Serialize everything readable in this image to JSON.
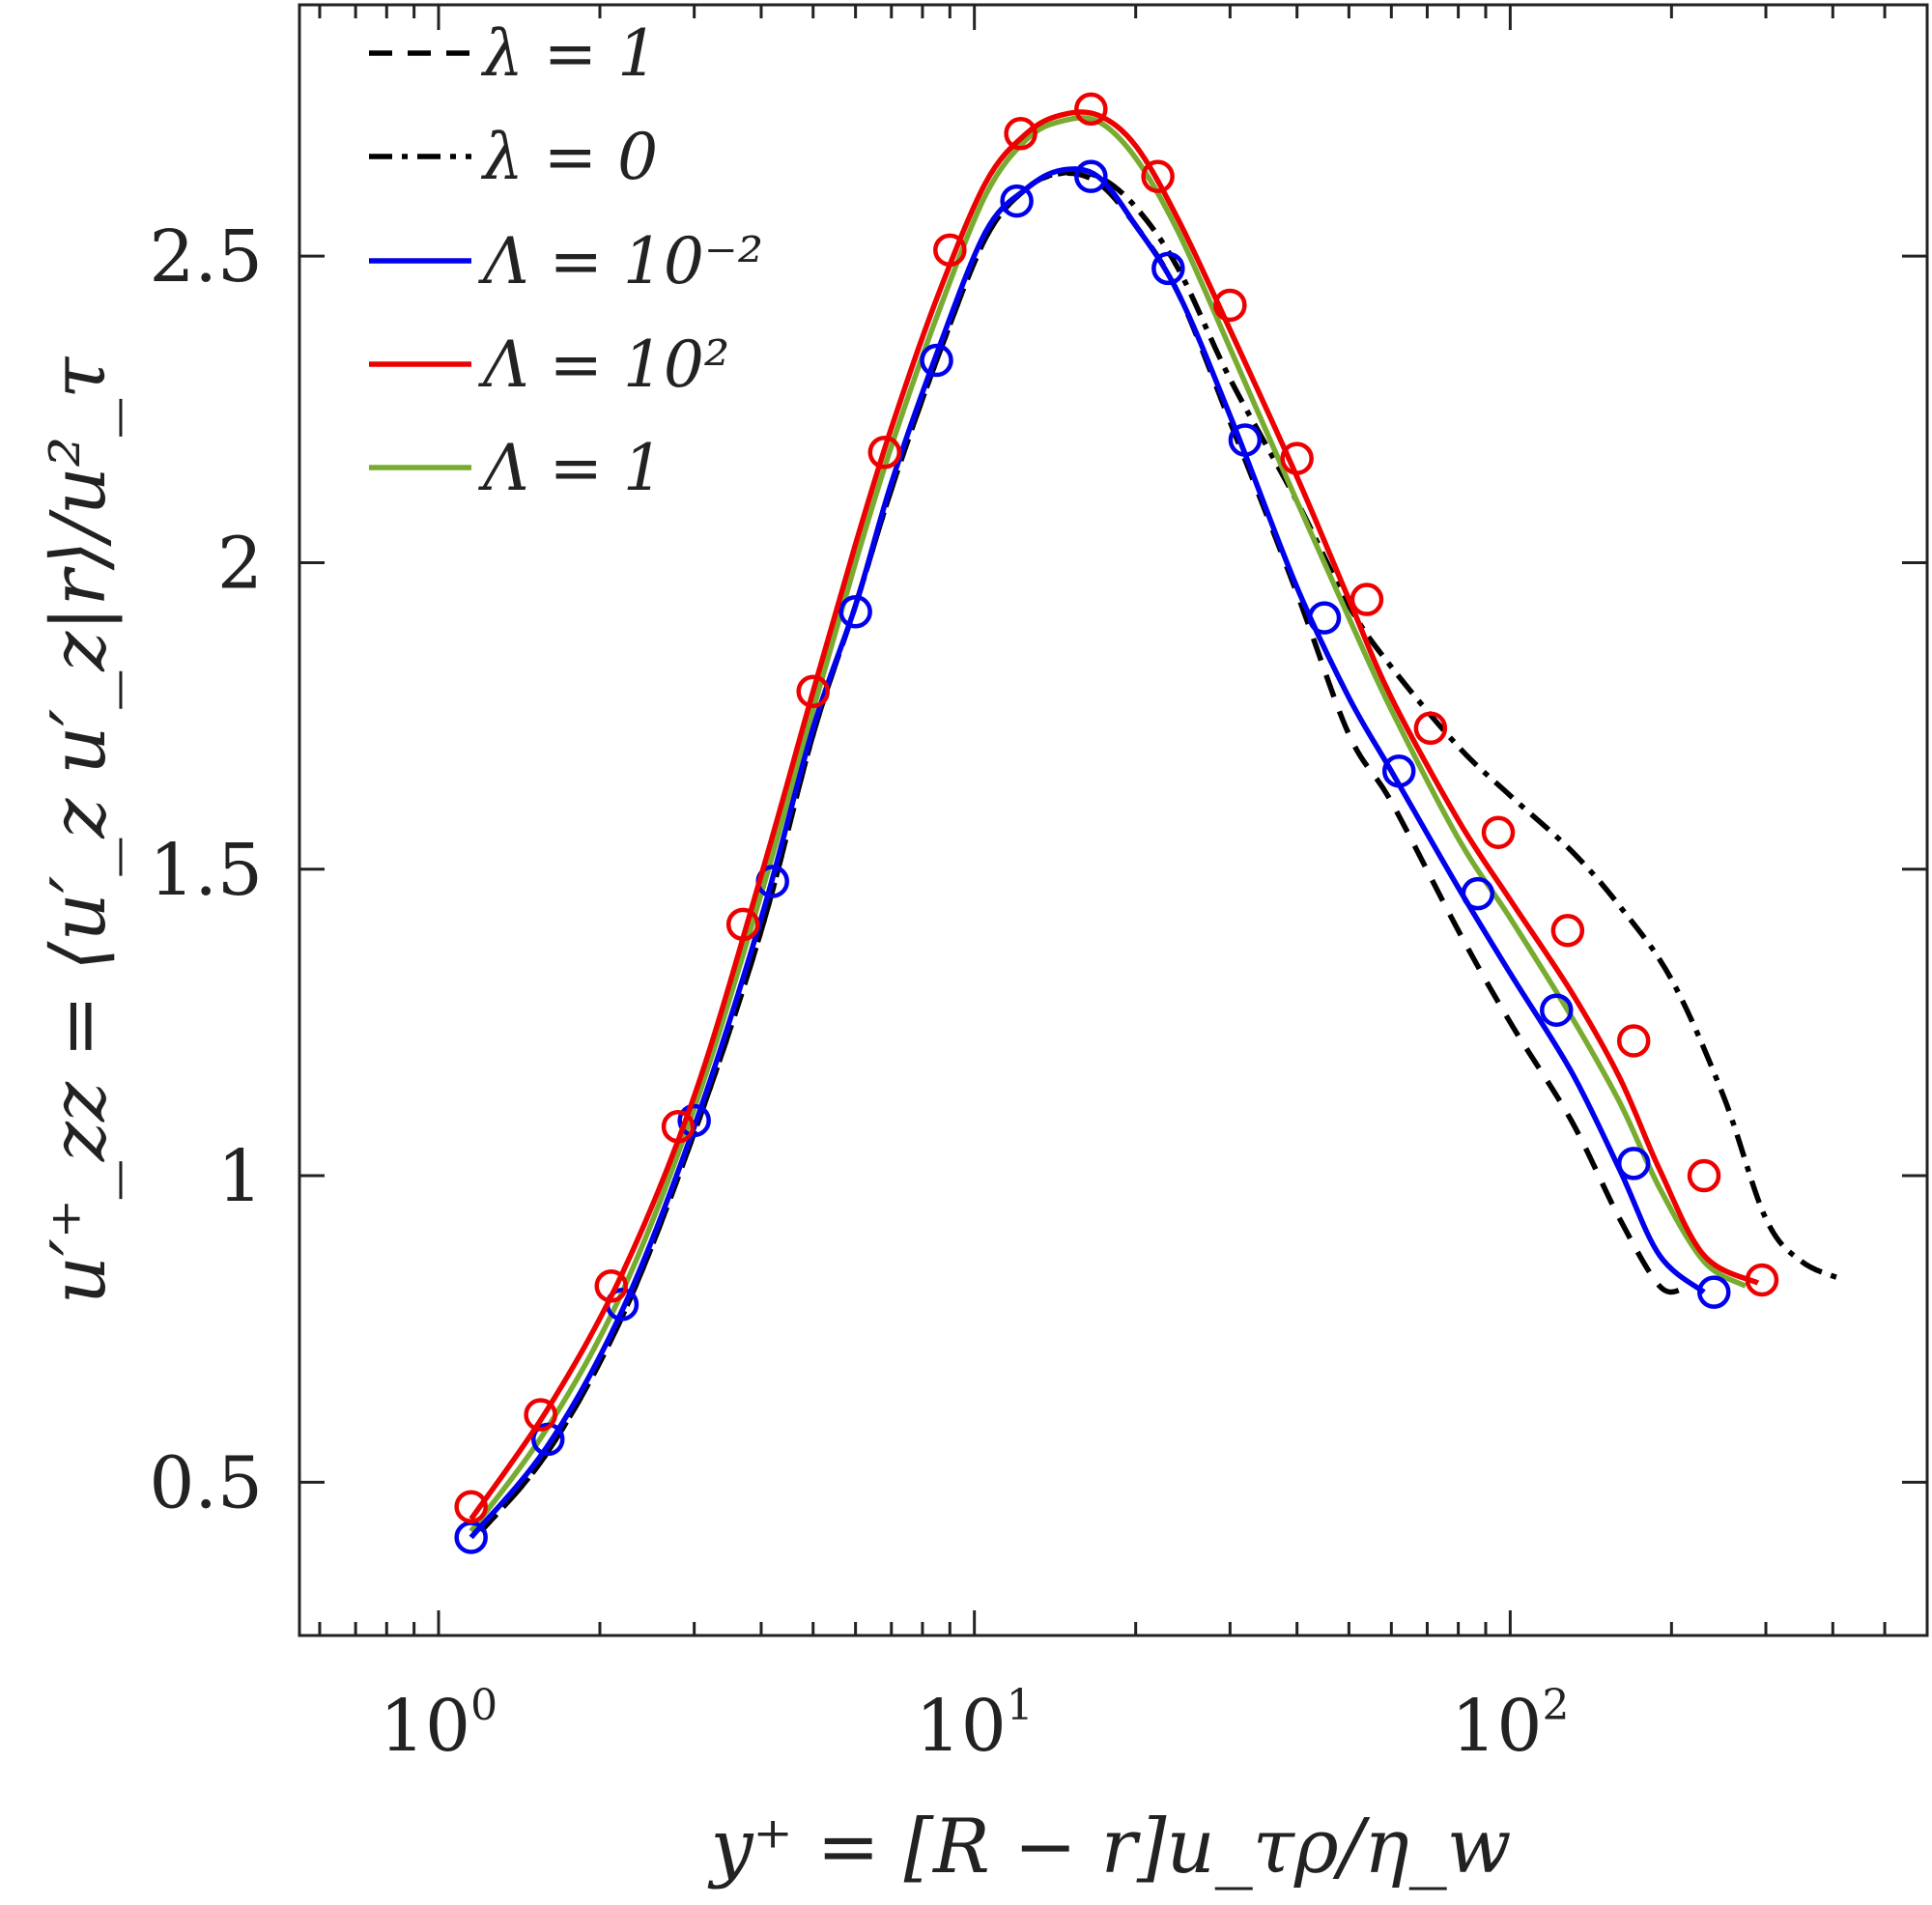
{
  "chart_data": {
    "type": "line",
    "title": "",
    "xlabel": "y⁺ = [R − r]u_τρ/η_w",
    "ylabel": "u′⁺_zz = ⟨u′_z u′_z|r⟩/u²_τ",
    "xscale": "log",
    "xlim": [
      0.55,
      600
    ],
    "ylim": [
      0.25,
      2.91
    ],
    "legend_position": "top-left",
    "x_ticks": [
      {
        "value": 1,
        "base": "10",
        "exp": "0"
      },
      {
        "value": 10,
        "base": "10",
        "exp": "1"
      },
      {
        "value": 100,
        "base": "10",
        "exp": "2"
      }
    ],
    "y_ticks": [
      {
        "value": 0.5,
        "label": "0.5"
      },
      {
        "value": 1,
        "label": "1"
      },
      {
        "value": 1.5,
        "label": "1.5"
      },
      {
        "value": 2,
        "label": "2"
      },
      {
        "value": 2.5,
        "label": "2.5"
      }
    ],
    "series": [
      {
        "name": "λ = 1",
        "color": "#000000",
        "style": "dashed",
        "markers": false,
        "x": [
          1.2,
          1.6,
          2.2,
          3.0,
          4.0,
          5.0,
          6.0,
          7.0,
          8.5,
          10.5,
          12.5,
          14.5,
          17,
          20,
          24,
          30,
          40,
          50,
          60,
          80,
          100,
          130,
          160,
          190,
          210
        ],
        "y": [
          0.42,
          0.55,
          0.77,
          1.07,
          1.4,
          1.72,
          1.93,
          2.12,
          2.33,
          2.53,
          2.61,
          2.635,
          2.62,
          2.55,
          2.44,
          2.23,
          1.95,
          1.72,
          1.61,
          1.4,
          1.25,
          1.09,
          0.93,
          0.82,
          0.815
        ]
      },
      {
        "name": "λ = 0",
        "color": "#000000",
        "style": "dashdot",
        "markers": false,
        "x": [
          1.2,
          1.6,
          2.2,
          3.0,
          4.0,
          5.0,
          6.0,
          7.0,
          8.5,
          10.5,
          12.5,
          14.5,
          17,
          20,
          24,
          30,
          40,
          50,
          60,
          80,
          100,
          130,
          160,
          200,
          250,
          300,
          350,
          420
        ],
        "y": [
          0.42,
          0.55,
          0.77,
          1.07,
          1.4,
          1.72,
          1.93,
          2.12,
          2.33,
          2.53,
          2.61,
          2.635,
          2.63,
          2.58,
          2.48,
          2.3,
          2.1,
          1.93,
          1.83,
          1.7,
          1.62,
          1.53,
          1.44,
          1.32,
          1.13,
          0.93,
          0.86,
          0.83
        ]
      },
      {
        "name": "Λ = 10⁻²",
        "color": "#0000ee",
        "style": "solid",
        "markers": true,
        "x": [
          1.15,
          1.6,
          2.2,
          3.0,
          4.0,
          5.0,
          6.0,
          7.0,
          8.5,
          10.5,
          12.5,
          14.5,
          17,
          20,
          24,
          30,
          40,
          50,
          60,
          80,
          100,
          130,
          160,
          190,
          230
        ],
        "y": [
          0.41,
          0.56,
          0.78,
          1.08,
          1.42,
          1.73,
          1.93,
          2.13,
          2.34,
          2.54,
          2.61,
          2.64,
          2.63,
          2.55,
          2.44,
          2.24,
          1.96,
          1.78,
          1.66,
          1.47,
          1.33,
          1.17,
          1.01,
          0.87,
          0.81
        ],
        "marker_x": [
          1.15,
          1.6,
          2.2,
          3.0,
          4.2,
          6.0,
          8.5,
          12.0,
          16.5,
          23,
          32,
          45,
          62,
          87,
          122,
          170,
          240
        ],
        "marker_y": [
          0.41,
          0.57,
          0.79,
          1.09,
          1.48,
          1.92,
          2.33,
          2.59,
          2.63,
          2.48,
          2.2,
          1.91,
          1.66,
          1.46,
          1.27,
          1.02,
          0.81
        ]
      },
      {
        "name": "Λ = 10²",
        "color": "#ee0000",
        "style": "solid",
        "markers": true,
        "x": [
          1.15,
          1.6,
          2.2,
          3.0,
          4.0,
          5.0,
          6.0,
          7.0,
          8.5,
          10.5,
          12.5,
          14.5,
          17,
          20,
          24,
          30,
          40,
          50,
          60,
          80,
          100,
          130,
          160,
          190,
          230,
          290
        ],
        "y": [
          0.44,
          0.62,
          0.84,
          1.13,
          1.49,
          1.79,
          2.03,
          2.22,
          2.43,
          2.62,
          2.7,
          2.73,
          2.73,
          2.68,
          2.56,
          2.38,
          2.14,
          1.94,
          1.78,
          1.58,
          1.45,
          1.3,
          1.16,
          1.01,
          0.87,
          0.825
        ],
        "marker_x": [
          1.15,
          1.55,
          2.1,
          2.8,
          3.7,
          5.0,
          6.8,
          9.0,
          12.2,
          16.5,
          22,
          30,
          40,
          54,
          71,
          95,
          128,
          170,
          230,
          295
        ],
        "marker_y": [
          0.46,
          0.61,
          0.82,
          1.08,
          1.41,
          1.79,
          2.18,
          2.51,
          2.7,
          2.74,
          2.63,
          2.42,
          2.17,
          1.94,
          1.73,
          1.56,
          1.4,
          1.22,
          1.0,
          0.83
        ]
      },
      {
        "name": "Λ = 1",
        "color": "#77ac30",
        "style": "solid",
        "markers": false,
        "x": [
          1.15,
          1.6,
          2.2,
          3.0,
          4.0,
          5.0,
          6.0,
          7.0,
          8.5,
          10.5,
          12.5,
          14.5,
          17,
          20,
          24,
          30,
          40,
          50,
          60,
          80,
          100,
          130,
          160,
          190,
          230,
          275
        ],
        "y": [
          0.42,
          0.59,
          0.81,
          1.11,
          1.46,
          1.76,
          2.0,
          2.19,
          2.4,
          2.6,
          2.69,
          2.72,
          2.72,
          2.66,
          2.54,
          2.35,
          2.1,
          1.91,
          1.76,
          1.55,
          1.42,
          1.26,
          1.12,
          0.98,
          0.86,
          0.82
        ]
      }
    ]
  }
}
